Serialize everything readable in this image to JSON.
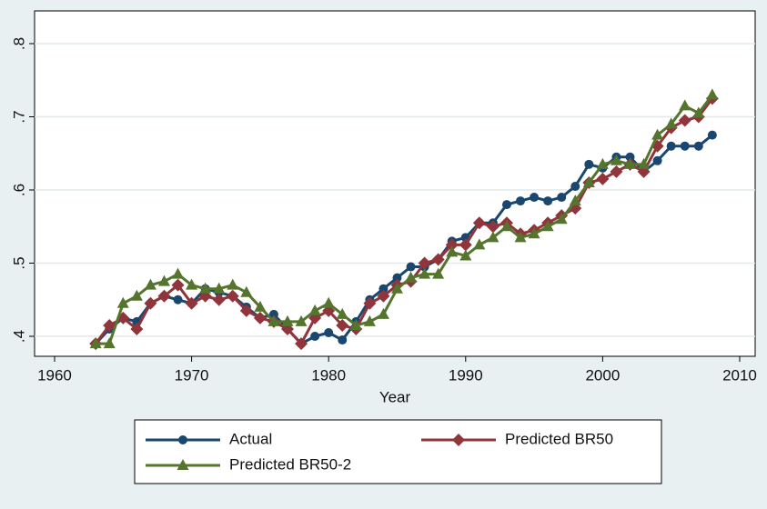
{
  "chart_data": {
    "type": "line",
    "x_label": "Year",
    "x": [
      1963,
      1964,
      1965,
      1966,
      1967,
      1968,
      1969,
      1970,
      1971,
      1972,
      1973,
      1974,
      1975,
      1976,
      1977,
      1978,
      1979,
      1980,
      1981,
      1982,
      1983,
      1984,
      1985,
      1986,
      1987,
      1988,
      1989,
      1990,
      1991,
      1992,
      1993,
      1994,
      1995,
      1996,
      1997,
      1998,
      1999,
      2000,
      2001,
      2002,
      2003,
      2004,
      2005,
      2006,
      2007,
      2008
    ],
    "series": [
      {
        "name": "Actual",
        "color": "#1a476f",
        "marker": "circle",
        "values": [
          0.39,
          0.41,
          0.425,
          0.42,
          0.445,
          0.455,
          0.45,
          0.445,
          0.465,
          0.46,
          0.455,
          0.44,
          0.425,
          0.43,
          0.41,
          0.39,
          0.4,
          0.405,
          0.395,
          0.42,
          0.45,
          0.465,
          0.48,
          0.495,
          0.495,
          0.505,
          0.53,
          0.535,
          0.555,
          0.555,
          0.58,
          0.585,
          0.59,
          0.585,
          0.59,
          0.605,
          0.635,
          0.63,
          0.645,
          0.645,
          0.625,
          0.64,
          0.66,
          0.66,
          0.66,
          0.675
        ]
      },
      {
        "name": "Predicted BR50",
        "color": "#90353b",
        "marker": "diamond",
        "values": [
          0.39,
          0.415,
          0.425,
          0.41,
          0.445,
          0.455,
          0.47,
          0.445,
          0.455,
          0.45,
          0.455,
          0.435,
          0.425,
          0.42,
          0.41,
          0.39,
          0.425,
          0.435,
          0.415,
          0.41,
          0.445,
          0.455,
          0.47,
          0.475,
          0.5,
          0.505,
          0.525,
          0.525,
          0.555,
          0.55,
          0.555,
          0.54,
          0.545,
          0.555,
          0.565,
          0.575,
          0.61,
          0.615,
          0.625,
          0.635,
          0.625,
          0.66,
          0.685,
          0.695,
          0.7,
          0.725
        ]
      },
      {
        "name": "Predicted BR50-2",
        "color": "#55752f",
        "marker": "triangle",
        "values": [
          0.39,
          0.39,
          0.445,
          0.455,
          0.47,
          0.475,
          0.485,
          0.47,
          0.465,
          0.465,
          0.47,
          0.46,
          0.44,
          0.42,
          0.42,
          0.42,
          0.435,
          0.445,
          0.43,
          0.415,
          0.42,
          0.43,
          0.465,
          0.48,
          0.485,
          0.485,
          0.515,
          0.51,
          0.525,
          0.535,
          0.55,
          0.535,
          0.54,
          0.55,
          0.56,
          0.585,
          0.61,
          0.635,
          0.64,
          0.635,
          0.635,
          0.675,
          0.69,
          0.715,
          0.705,
          0.73
        ]
      }
    ],
    "xlim": [
      1958.54,
      2011.13
    ],
    "xticks": [
      1960,
      1970,
      1980,
      1990,
      2000,
      2010
    ],
    "ylim": [
      0.3727,
      0.8447
    ],
    "yticks": [
      {
        "value": 0.4,
        "label": ".4"
      },
      {
        "value": 0.5,
        "label": ".5"
      },
      {
        "value": 0.6,
        "label": ".6"
      },
      {
        "value": 0.7,
        "label": ".7"
      },
      {
        "value": 0.8,
        "label": ".8"
      }
    ],
    "grid": true
  }
}
